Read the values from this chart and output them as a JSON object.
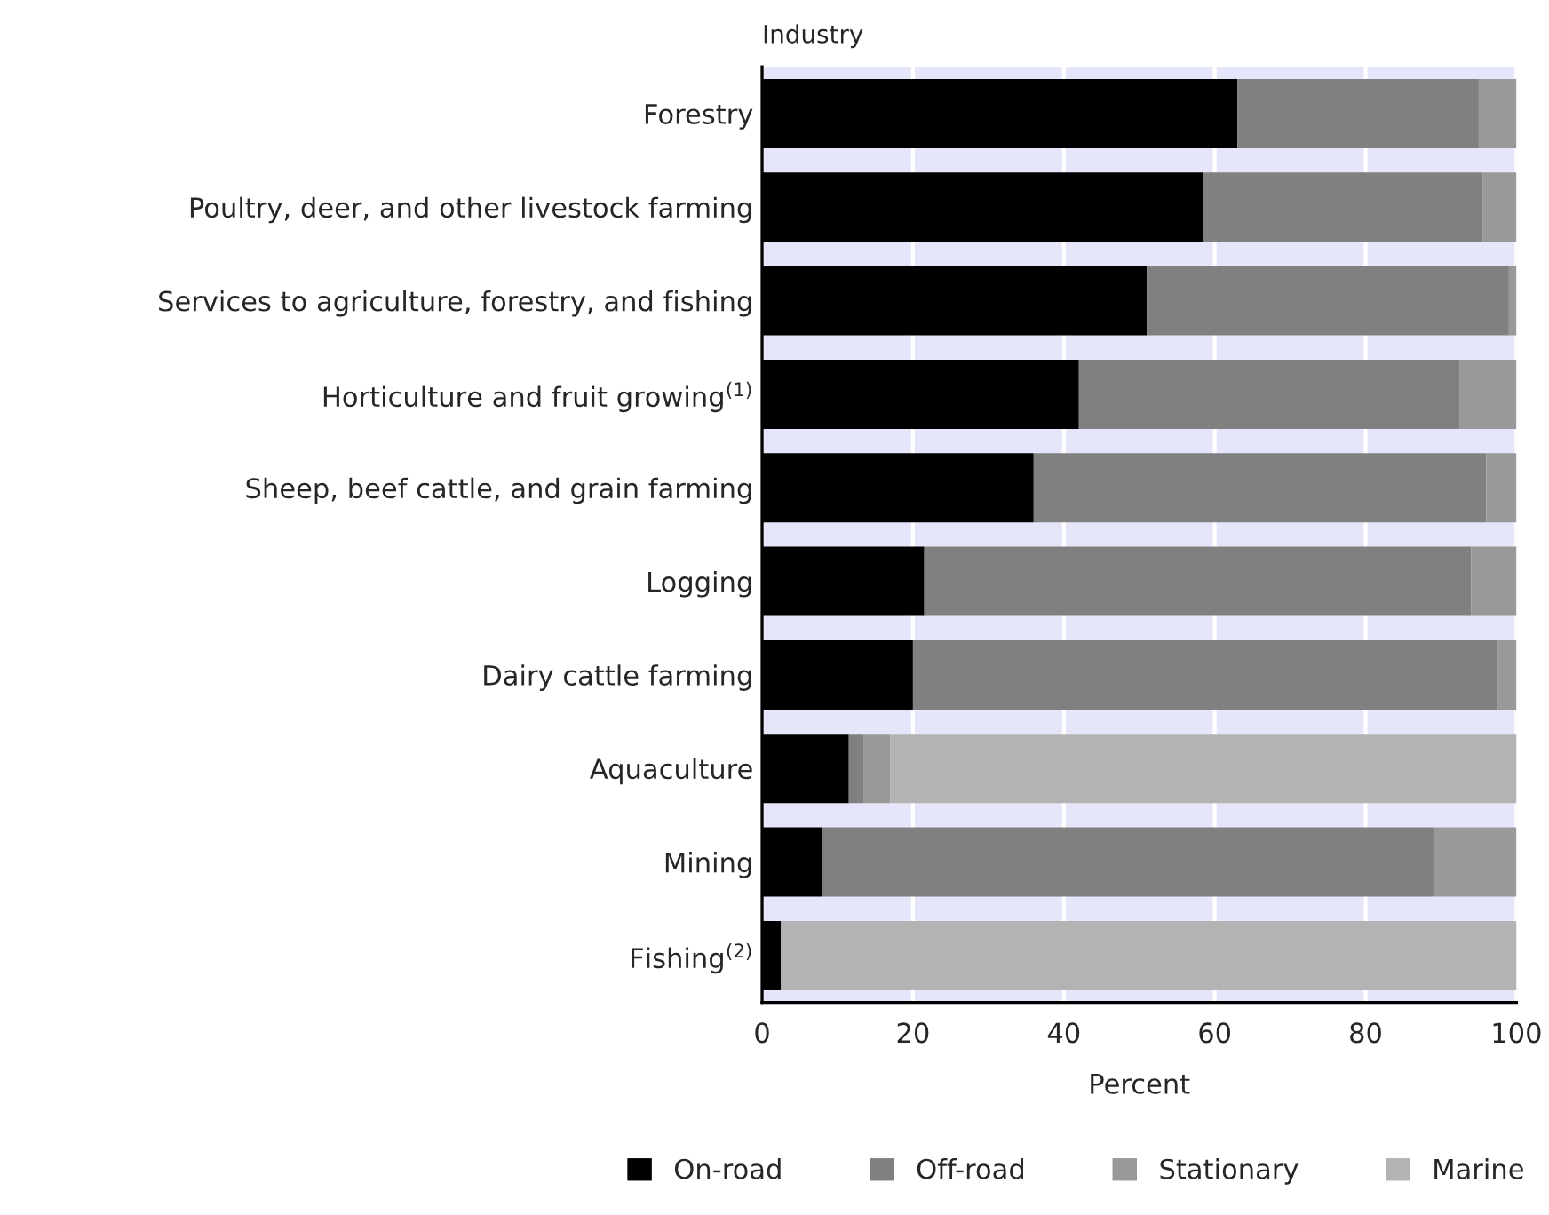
{
  "chart_data": {
    "type": "bar",
    "orientation": "horizontal",
    "stacked": true,
    "ylabel": "Industry",
    "xlabel": "Percent",
    "categories": [
      "Forestry",
      "Poultry, deer, and other livestock farming",
      "Services to agriculture, forestry, and fishing",
      "Horticulture and fruit growing$^{(1)}$",
      "Sheep, beef cattle, and grain farming",
      "Logging",
      "Dairy cattle farming",
      "Aquaculture",
      "Mining",
      "Fishing$^{(2)}$"
    ],
    "series": [
      {
        "name": "On-road",
        "color": "#000000",
        "values": [
          63,
          58.5,
          51,
          42,
          36,
          21.5,
          20,
          11.5,
          8,
          2.5
        ]
      },
      {
        "name": "Off-road",
        "color": "#808080",
        "values": [
          32,
          37,
          48,
          50.5,
          60,
          72.5,
          77.5,
          2,
          81,
          null
        ]
      },
      {
        "name": "Stationary",
        "color": "#999999",
        "values": [
          5,
          4.5,
          1,
          7.5,
          4,
          6,
          2.5,
          3.5,
          11,
          null
        ]
      },
      {
        "name": "Marine",
        "color": "#b3b3b3",
        "values": [
          null,
          null,
          null,
          null,
          null,
          null,
          null,
          83,
          null,
          97.5
        ]
      }
    ],
    "xlim": [
      0,
      100
    ],
    "xticks": [
      0,
      20,
      40,
      60,
      80,
      100
    ],
    "grid": "x",
    "legend": "bottom"
  }
}
